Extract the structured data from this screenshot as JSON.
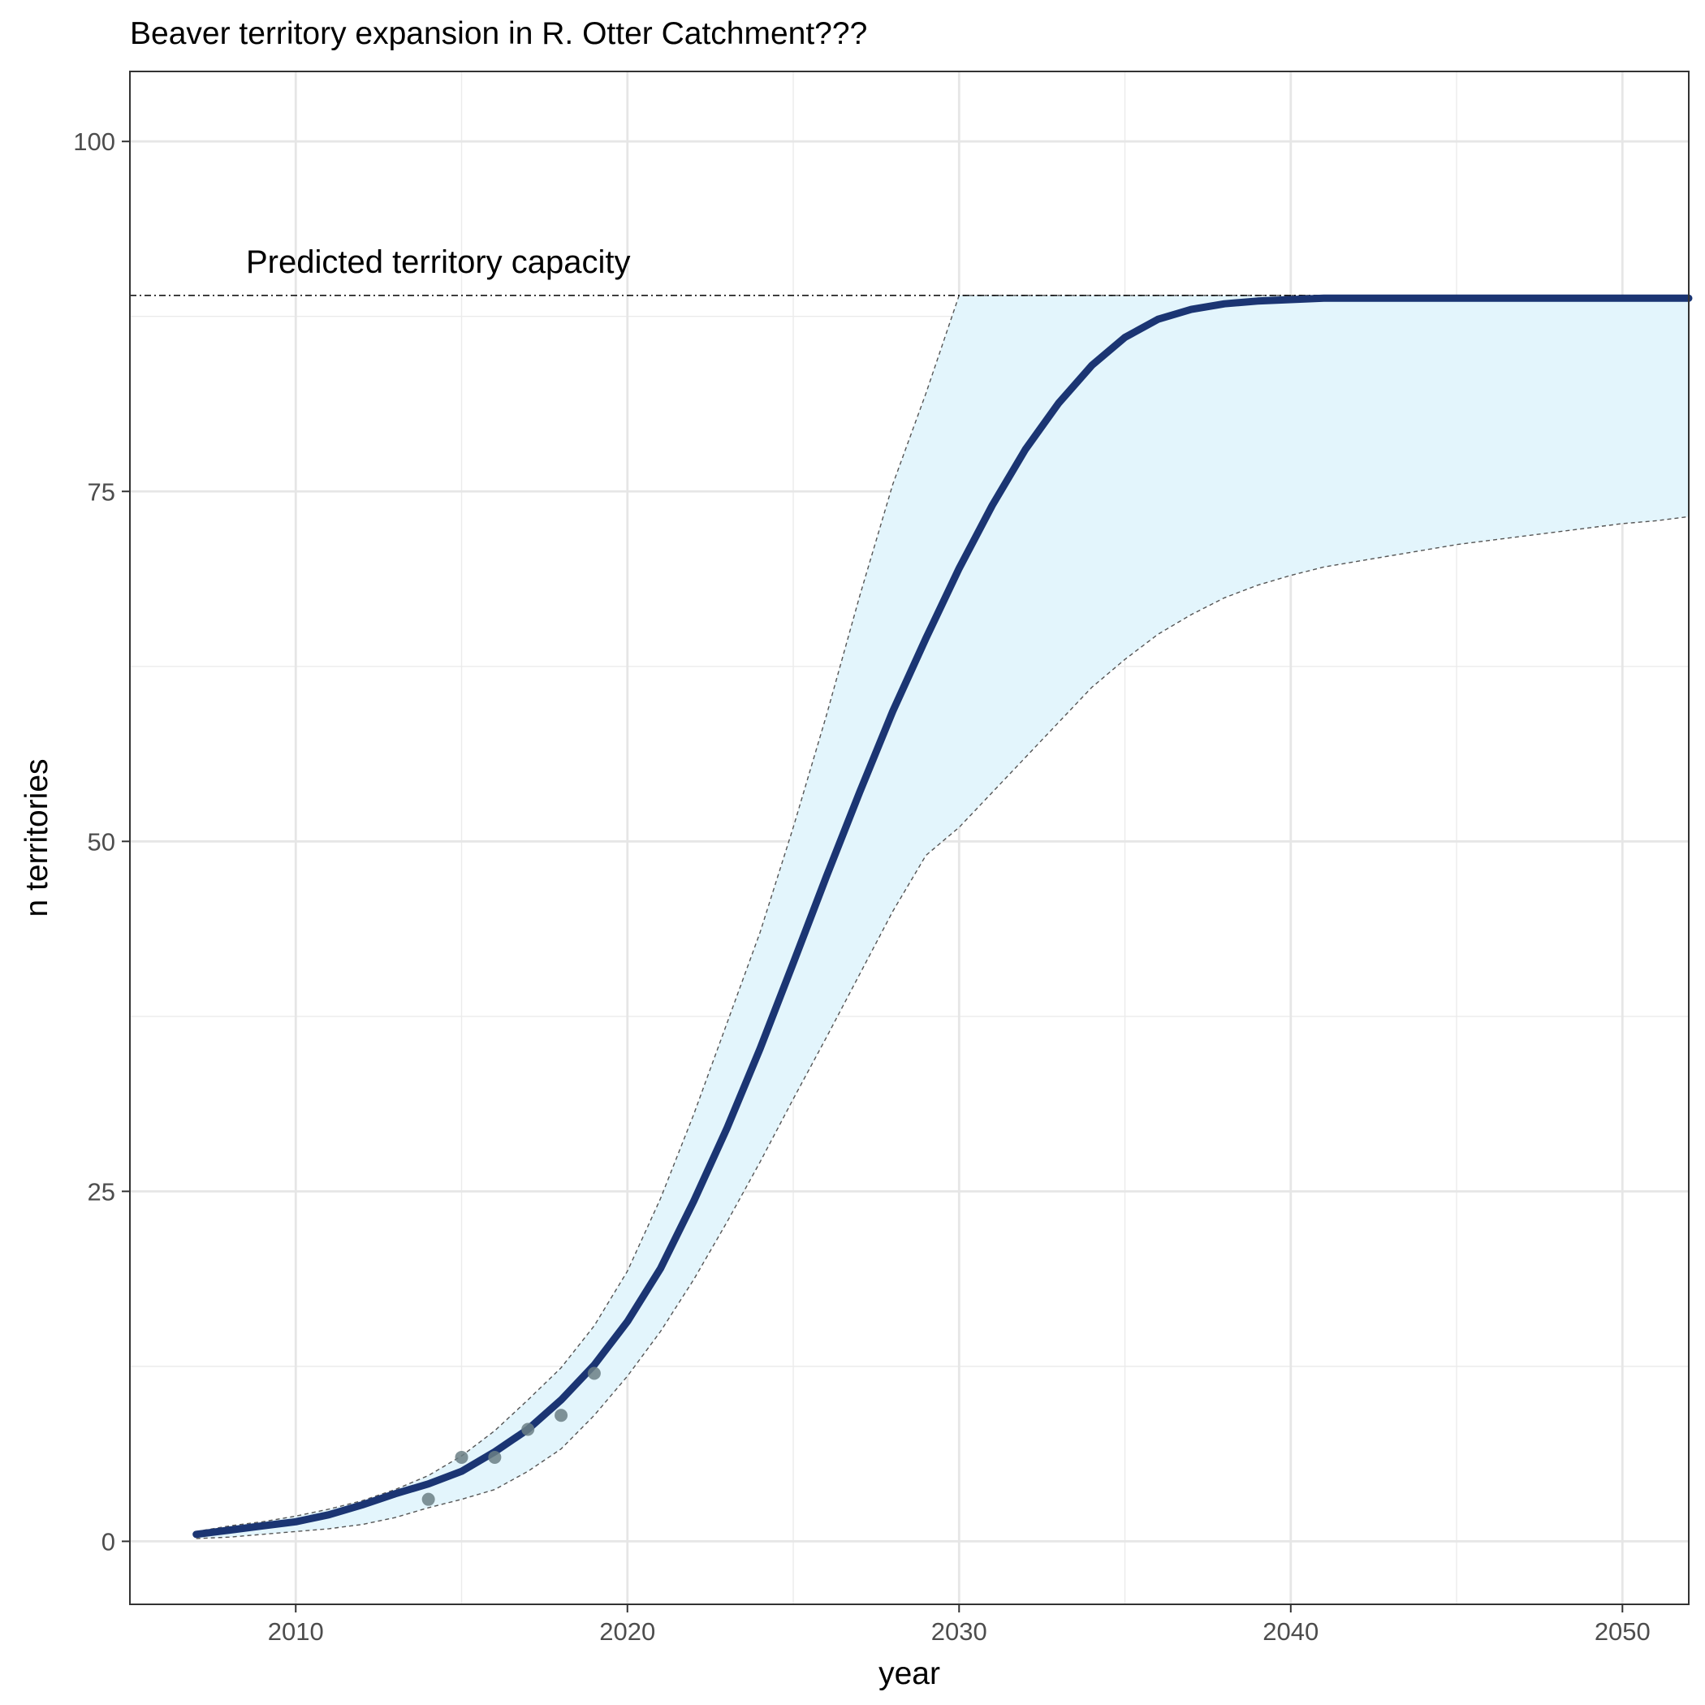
{
  "chart_data": {
    "type": "line",
    "title": "Beaver territory expansion in R. Otter Catchment???",
    "xlabel": "year",
    "ylabel": "n territories",
    "xlim": [
      2005,
      2052
    ],
    "ylim": [
      -4.5,
      105
    ],
    "x_ticks": [
      2010,
      2020,
      2030,
      2040,
      2050
    ],
    "y_ticks": [
      0,
      25,
      50,
      75,
      100
    ],
    "x_minor": [
      2015,
      2025,
      2035,
      2045
    ],
    "y_minor": [
      12.5,
      37.5,
      62.5,
      87.5
    ],
    "grid": true,
    "capacity": {
      "value": 89,
      "label": "Predicted territory capacity",
      "label_x": 2008.5
    },
    "series": [
      {
        "kind": "fit",
        "color": "#1b3573",
        "x": [
          2007,
          2008,
          2009,
          2010,
          2011,
          2012,
          2013,
          2014,
          2015,
          2016,
          2017,
          2018,
          2019,
          2020,
          2021,
          2022,
          2023,
          2024,
          2025,
          2026,
          2027,
          2028,
          2029,
          2030,
          2031,
          2032,
          2033,
          2034,
          2035,
          2036,
          2037,
          2038,
          2039,
          2040,
          2041,
          2042,
          2043,
          2044,
          2045,
          2046,
          2047,
          2048,
          2049,
          2050,
          2051,
          2052
        ],
        "y": [
          0.5,
          0.8,
          1.1,
          1.4,
          1.9,
          2.6,
          3.4,
          4.1,
          5.0,
          6.4,
          8.0,
          10.1,
          12.6,
          15.7,
          19.5,
          24.3,
          29.5,
          35.2,
          41.3,
          47.5,
          53.5,
          59.3,
          64.5,
          69.5,
          74.0,
          78.0,
          81.3,
          84.0,
          86.0,
          87.3,
          88.0,
          88.4,
          88.6,
          88.7,
          88.8,
          88.8,
          88.8,
          88.8,
          88.8,
          88.8,
          88.8,
          88.8,
          88.8,
          88.8,
          88.8,
          88.8
        ]
      },
      {
        "kind": "ribbon",
        "color": "#e3f5fc",
        "x": [
          2007,
          2008,
          2009,
          2010,
          2011,
          2012,
          2013,
          2014,
          2015,
          2016,
          2017,
          2018,
          2019,
          2020,
          2021,
          2022,
          2023,
          2024,
          2025,
          2026,
          2027,
          2028,
          2029,
          2030,
          2031,
          2032,
          2033,
          2034,
          2035,
          2036,
          2037,
          2038,
          2039,
          2040,
          2041,
          2042,
          2043,
          2044,
          2045,
          2046,
          2047,
          2048,
          2049,
          2050,
          2051,
          2052
        ],
        "upper": [
          0.7,
          1.1,
          1.4,
          1.8,
          2.3,
          2.9,
          3.7,
          4.7,
          6.1,
          7.9,
          10.1,
          12.4,
          15.4,
          19.3,
          24.5,
          30.5,
          37.0,
          43.5,
          51.0,
          59.0,
          67.5,
          75.5,
          82.0,
          89.0,
          89,
          89,
          89,
          89,
          89,
          89,
          89,
          89,
          89,
          89,
          89,
          89,
          89,
          89,
          89,
          89,
          89,
          89,
          89,
          89,
          89,
          89
        ],
        "lower": [
          0.2,
          0.3,
          0.5,
          0.7,
          0.9,
          1.2,
          1.7,
          2.4,
          3.0,
          3.7,
          5.0,
          6.6,
          9.0,
          11.8,
          15.0,
          18.7,
          22.8,
          27.1,
          31.6,
          36.0,
          40.5,
          45.0,
          49.0,
          51.0,
          53.5,
          56.0,
          58.5,
          61.0,
          63.0,
          64.8,
          66.2,
          67.4,
          68.3,
          69.0,
          69.6,
          70.0,
          70.4,
          70.8,
          71.2,
          71.5,
          71.8,
          72.1,
          72.4,
          72.7,
          72.9,
          73.2
        ]
      },
      {
        "kind": "observed",
        "color": "#6b7f85",
        "x": [
          2014,
          2015,
          2016,
          2017,
          2018,
          2019
        ],
        "y": [
          3,
          6,
          6,
          8,
          9,
          12
        ]
      }
    ]
  }
}
